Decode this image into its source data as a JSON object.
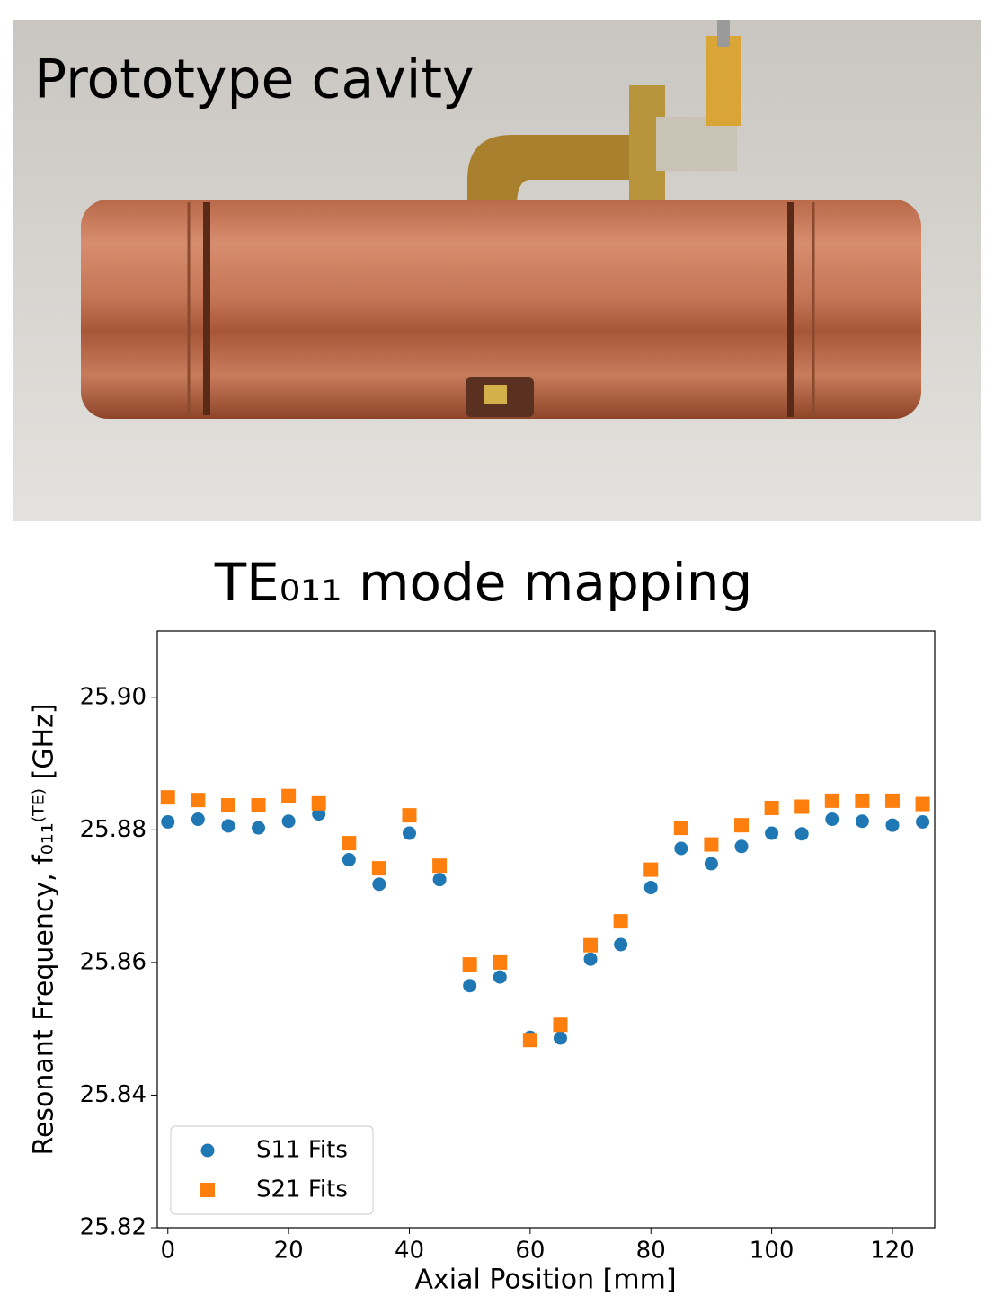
{
  "photo": {
    "caption": "Prototype cavity"
  },
  "chart_data": {
    "type": "scatter",
    "title": "TE₀₁₁ mode mapping",
    "xlabel": "Axial Position [mm]",
    "ylabel": "Resonant Frequency, f₀₁₁⁽ᵀᴱ⁾ [GHz]",
    "x": [
      0,
      5,
      10,
      15,
      20,
      25,
      30,
      35,
      40,
      45,
      50,
      55,
      60,
      65,
      70,
      75,
      80,
      85,
      90,
      95,
      100,
      105,
      110,
      115,
      120,
      125
    ],
    "series": [
      {
        "name": "S11 Fits",
        "color": "#1f77b4",
        "marker": "circle",
        "values": [
          25.8812,
          25.8816,
          25.8806,
          25.8803,
          25.8813,
          25.8824,
          25.8755,
          25.8718,
          25.8795,
          25.8725,
          25.8565,
          25.8578,
          25.8487,
          25.8486,
          25.8605,
          25.8627,
          25.8713,
          25.8772,
          25.8749,
          25.8775,
          25.8795,
          25.8794,
          25.8816,
          25.8813,
          25.8807,
          25.8812
        ]
      },
      {
        "name": "S21 Fits",
        "color": "#ff7f0e",
        "marker": "square",
        "values": [
          25.8849,
          25.8845,
          25.8837,
          25.8837,
          25.8851,
          25.884,
          25.878,
          25.8742,
          25.8822,
          25.8746,
          25.8597,
          25.86,
          25.8483,
          25.8506,
          25.8626,
          25.8662,
          25.874,
          25.8803,
          25.8778,
          25.8807,
          25.8833,
          25.8835,
          25.8844,
          25.8844,
          25.8844,
          25.8839
        ]
      }
    ],
    "xlim": [
      -1.75,
      127.0
    ],
    "ylim": [
      25.82,
      25.91
    ],
    "xticks": [
      0,
      20,
      40,
      60,
      80,
      100,
      120
    ],
    "yticks": [
      {
        "value": 25.9,
        "label": "25.90"
      },
      25.88,
      25.86,
      25.84,
      25.82
    ],
    "legend": "lower left"
  }
}
